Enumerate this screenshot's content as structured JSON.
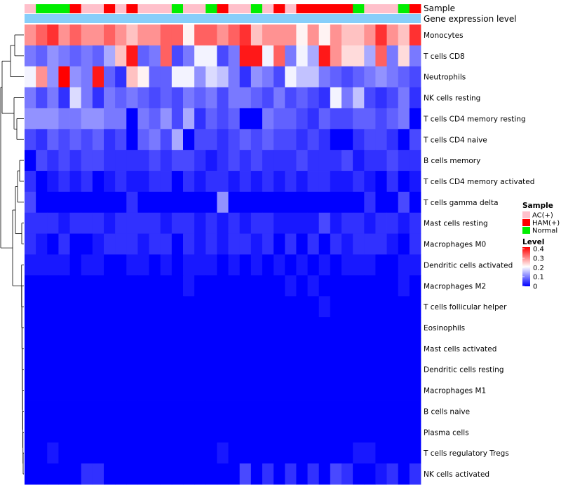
{
  "chart_data": {
    "type": "heatmap",
    "title": "",
    "annotation_rows": [
      "Sample",
      "Gene expression level"
    ],
    "samples": [
      "AC(+)",
      "Normal",
      "Normal",
      "Normal",
      "HAM(+)",
      "AC(+)",
      "AC(+)",
      "HAM(+)",
      "AC(+)",
      "HAM(+)",
      "AC(+)",
      "AC(+)",
      "AC(+)",
      "Normal",
      "AC(+)",
      "AC(+)",
      "Normal",
      "HAM(+)",
      "AC(+)",
      "AC(+)",
      "Normal",
      "AC(+)",
      "HAM(+)",
      "AC(+)",
      "HAM(+)",
      "HAM(+)",
      "HAM(+)",
      "HAM(+)",
      "HAM(+)",
      "Normal",
      "AC(+)",
      "AC(+)",
      "AC(+)",
      "Normal",
      "HAM(+)"
    ],
    "rows": [
      {
        "label": "Monocytes",
        "values": [
          0.3,
          0.34,
          0.38,
          0.3,
          0.34,
          0.3,
          0.3,
          0.34,
          0.3,
          0.26,
          0.3,
          0.3,
          0.34,
          0.34,
          0.22,
          0.34,
          0.34,
          0.3,
          0.34,
          0.38,
          0.26,
          0.3,
          0.3,
          0.3,
          0.22,
          0.3,
          0.22,
          0.3,
          0.26,
          0.26,
          0.3,
          0.38,
          0.3,
          0.26,
          0.38
        ]
      },
      {
        "label": "T cells CD8",
        "values": [
          0.1,
          0.08,
          0.12,
          0.1,
          0.08,
          0.1,
          0.08,
          0.14,
          0.26,
          0.4,
          0.08,
          0.1,
          0.34,
          0.06,
          0.1,
          0.2,
          0.2,
          0.06,
          0.1,
          0.4,
          0.4,
          0.2,
          0.34,
          0.1,
          0.2,
          0.14,
          0.4,
          0.3,
          0.24,
          0.24,
          0.14,
          0.34,
          0.1,
          0.24,
          0.1
        ]
      },
      {
        "label": "Neutrophils",
        "values": [
          0.2,
          0.3,
          0.12,
          0.42,
          0.12,
          0.1,
          0.4,
          0.08,
          0.04,
          0.26,
          0.22,
          0.08,
          0.08,
          0.2,
          0.2,
          0.12,
          0.18,
          0.16,
          0.1,
          0.04,
          0.12,
          0.1,
          0.06,
          0.2,
          0.16,
          0.16,
          0.1,
          0.08,
          0.06,
          0.08,
          0.1,
          0.12,
          0.1,
          0.08,
          0.06
        ]
      },
      {
        "label": "NK cells resting",
        "values": [
          0.1,
          0.06,
          0.1,
          0.04,
          0.18,
          0.1,
          0.04,
          0.1,
          0.08,
          0.1,
          0.08,
          0.06,
          0.08,
          0.06,
          0.1,
          0.08,
          0.1,
          0.06,
          0.1,
          0.1,
          0.08,
          0.06,
          0.1,
          0.06,
          0.08,
          0.06,
          0.04,
          0.2,
          0.1,
          0.16,
          0.06,
          0.04,
          0.06,
          0.1,
          0.04
        ]
      },
      {
        "label": "T cells CD4 memory resting",
        "values": [
          0.12,
          0.12,
          0.12,
          0.1,
          0.1,
          0.12,
          0.12,
          0.1,
          0.1,
          0.0,
          0.1,
          0.08,
          0.12,
          0.06,
          0.14,
          0.04,
          0.08,
          0.06,
          0.08,
          0.0,
          0.0,
          0.1,
          0.08,
          0.08,
          0.06,
          0.04,
          0.08,
          0.06,
          0.06,
          0.08,
          0.08,
          0.06,
          0.08,
          0.1,
          0.0
        ]
      },
      {
        "label": "T cells CD4 naive",
        "values": [
          0.06,
          0.04,
          0.08,
          0.06,
          0.08,
          0.06,
          0.08,
          0.04,
          0.06,
          0.0,
          0.08,
          0.1,
          0.06,
          0.14,
          0.0,
          0.06,
          0.06,
          0.04,
          0.06,
          0.08,
          0.06,
          0.08,
          0.06,
          0.06,
          0.04,
          0.06,
          0.04,
          0.0,
          0.0,
          0.04,
          0.06,
          0.06,
          0.04,
          0.0,
          0.06
        ]
      },
      {
        "label": "B cells memory",
        "values": [
          0.0,
          0.06,
          0.04,
          0.06,
          0.04,
          0.06,
          0.06,
          0.04,
          0.04,
          0.04,
          0.04,
          0.06,
          0.04,
          0.06,
          0.06,
          0.04,
          0.02,
          0.04,
          0.06,
          0.04,
          0.06,
          0.04,
          0.04,
          0.04,
          0.06,
          0.04,
          0.04,
          0.04,
          0.06,
          0.02,
          0.04,
          0.04,
          0.06,
          0.04,
          0.04
        ]
      },
      {
        "label": "T cells CD4 memory activated",
        "values": [
          0.04,
          0.0,
          0.02,
          0.04,
          0.02,
          0.04,
          0.0,
          0.02,
          0.04,
          0.02,
          0.02,
          0.04,
          0.04,
          0.0,
          0.04,
          0.02,
          0.04,
          0.04,
          0.02,
          0.04,
          0.02,
          0.04,
          0.02,
          0.04,
          0.02,
          0.04,
          0.04,
          0.02,
          0.02,
          0.04,
          0.02,
          0.0,
          0.04,
          0.0,
          0.02
        ]
      },
      {
        "label": "T cells gamma delta",
        "values": [
          0.06,
          0.0,
          0.0,
          0.0,
          0.0,
          0.0,
          0.0,
          0.0,
          0.0,
          0.04,
          0.0,
          0.0,
          0.0,
          0.0,
          0.0,
          0.0,
          0.0,
          0.12,
          0.0,
          0.0,
          0.0,
          0.0,
          0.0,
          0.0,
          0.0,
          0.0,
          0.0,
          0.0,
          0.0,
          0.0,
          0.04,
          0.0,
          0.0,
          0.06,
          0.0
        ]
      },
      {
        "label": "Mast cells resting",
        "values": [
          0.04,
          0.04,
          0.04,
          0.02,
          0.04,
          0.04,
          0.04,
          0.02,
          0.04,
          0.04,
          0.04,
          0.04,
          0.02,
          0.04,
          0.04,
          0.02,
          0.04,
          0.02,
          0.04,
          0.02,
          0.04,
          0.04,
          0.02,
          0.02,
          0.02,
          0.02,
          0.06,
          0.02,
          0.04,
          0.04,
          0.02,
          0.04,
          0.04,
          0.02,
          0.04
        ]
      },
      {
        "label": "Macrophages M0",
        "values": [
          0.04,
          0.02,
          0.0,
          0.04,
          0.0,
          0.0,
          0.02,
          0.04,
          0.04,
          0.04,
          0.02,
          0.04,
          0.04,
          0.0,
          0.04,
          0.02,
          0.04,
          0.02,
          0.04,
          0.04,
          0.02,
          0.04,
          0.0,
          0.04,
          0.0,
          0.04,
          0.0,
          0.04,
          0.02,
          0.04,
          0.04,
          0.04,
          0.02,
          0.0,
          0.04
        ]
      },
      {
        "label": "Dendritic cells activated",
        "values": [
          0.02,
          0.02,
          0.02,
          0.02,
          0.0,
          0.02,
          0.02,
          0.0,
          0.0,
          0.02,
          0.02,
          0.0,
          0.02,
          0.0,
          0.02,
          0.02,
          0.02,
          0.0,
          0.02,
          0.0,
          0.02,
          0.0,
          0.02,
          0.0,
          0.02,
          0.0,
          0.02,
          0.0,
          0.02,
          0.02,
          0.02,
          0.0,
          0.0,
          0.02,
          0.02
        ]
      },
      {
        "label": "Macrophages M2",
        "values": [
          0.0,
          0.0,
          0.0,
          0.0,
          0.0,
          0.0,
          0.0,
          0.0,
          0.0,
          0.0,
          0.0,
          0.0,
          0.0,
          0.0,
          0.02,
          0.0,
          0.0,
          0.0,
          0.0,
          0.0,
          0.0,
          0.0,
          0.0,
          0.02,
          0.0,
          0.02,
          0.0,
          0.0,
          0.0,
          0.0,
          0.0,
          0.0,
          0.0,
          0.02,
          0.0
        ]
      },
      {
        "label": "T cells follicular helper",
        "values": [
          0.0,
          0.0,
          0.0,
          0.0,
          0.0,
          0.0,
          0.0,
          0.0,
          0.0,
          0.0,
          0.0,
          0.0,
          0.0,
          0.0,
          0.0,
          0.0,
          0.0,
          0.0,
          0.0,
          0.0,
          0.0,
          0.0,
          0.0,
          0.0,
          0.0,
          0.0,
          0.02,
          0.0,
          0.0,
          0.0,
          0.0,
          0.0,
          0.0,
          0.0,
          0.0
        ]
      },
      {
        "label": "Eosinophils",
        "values": [
          0.0,
          0.0,
          0.0,
          0.0,
          0.0,
          0.0,
          0.0,
          0.0,
          0.0,
          0.0,
          0.0,
          0.0,
          0.0,
          0.0,
          0.0,
          0.0,
          0.0,
          0.0,
          0.0,
          0.0,
          0.0,
          0.0,
          0.0,
          0.0,
          0.0,
          0.0,
          0.0,
          0.0,
          0.0,
          0.0,
          0.0,
          0.0,
          0.0,
          0.0,
          0.0
        ]
      },
      {
        "label": "Mast cells activated",
        "values": [
          0.0,
          0.0,
          0.0,
          0.0,
          0.0,
          0.0,
          0.0,
          0.0,
          0.0,
          0.0,
          0.0,
          0.0,
          0.0,
          0.0,
          0.0,
          0.0,
          0.0,
          0.0,
          0.0,
          0.0,
          0.0,
          0.0,
          0.0,
          0.0,
          0.0,
          0.0,
          0.0,
          0.0,
          0.0,
          0.0,
          0.0,
          0.0,
          0.0,
          0.0,
          0.0
        ]
      },
      {
        "label": "Dendritic cells resting",
        "values": [
          0.0,
          0.0,
          0.0,
          0.0,
          0.0,
          0.0,
          0.0,
          0.0,
          0.0,
          0.0,
          0.0,
          0.0,
          0.0,
          0.0,
          0.0,
          0.0,
          0.0,
          0.0,
          0.0,
          0.0,
          0.0,
          0.0,
          0.0,
          0.0,
          0.0,
          0.0,
          0.0,
          0.0,
          0.0,
          0.0,
          0.0,
          0.0,
          0.0,
          0.0,
          0.0
        ]
      },
      {
        "label": "Macrophages M1",
        "values": [
          0.0,
          0.0,
          0.0,
          0.0,
          0.0,
          0.0,
          0.0,
          0.0,
          0.0,
          0.0,
          0.0,
          0.0,
          0.0,
          0.0,
          0.0,
          0.0,
          0.0,
          0.0,
          0.0,
          0.0,
          0.0,
          0.0,
          0.0,
          0.0,
          0.0,
          0.0,
          0.0,
          0.0,
          0.0,
          0.0,
          0.0,
          0.0,
          0.0,
          0.0,
          0.0
        ]
      },
      {
        "label": "B cells naive",
        "values": [
          0.0,
          0.0,
          0.0,
          0.0,
          0.0,
          0.0,
          0.0,
          0.0,
          0.0,
          0.0,
          0.0,
          0.0,
          0.0,
          0.0,
          0.0,
          0.0,
          0.0,
          0.0,
          0.0,
          0.0,
          0.0,
          0.0,
          0.0,
          0.0,
          0.0,
          0.0,
          0.0,
          0.0,
          0.0,
          0.0,
          0.0,
          0.0,
          0.0,
          0.0,
          0.0
        ]
      },
      {
        "label": "Plasma cells",
        "values": [
          0.0,
          0.0,
          0.0,
          0.0,
          0.0,
          0.0,
          0.0,
          0.0,
          0.0,
          0.0,
          0.0,
          0.0,
          0.0,
          0.0,
          0.0,
          0.0,
          0.0,
          0.0,
          0.0,
          0.0,
          0.0,
          0.0,
          0.0,
          0.0,
          0.0,
          0.0,
          0.0,
          0.0,
          0.0,
          0.0,
          0.0,
          0.0,
          0.0,
          0.0,
          0.0
        ]
      },
      {
        "label": "T cells regulatory  Tregs",
        "values": [
          0.0,
          0.0,
          0.02,
          0.0,
          0.0,
          0.0,
          0.0,
          0.0,
          0.0,
          0.0,
          0.0,
          0.0,
          0.0,
          0.0,
          0.0,
          0.0,
          0.0,
          0.02,
          0.0,
          0.0,
          0.0,
          0.0,
          0.0,
          0.0,
          0.0,
          0.0,
          0.0,
          0.0,
          0.0,
          0.02,
          0.02,
          0.0,
          0.0,
          0.0,
          0.0
        ]
      },
      {
        "label": "NK cells activated",
        "values": [
          0.0,
          0.0,
          0.0,
          0.0,
          0.0,
          0.04,
          0.04,
          0.0,
          0.0,
          0.0,
          0.0,
          0.0,
          0.0,
          0.0,
          0.0,
          0.0,
          0.0,
          0.0,
          0.0,
          0.06,
          0.0,
          0.04,
          0.0,
          0.04,
          0.0,
          0.04,
          0.0,
          0.06,
          0.04,
          0.0,
          0.0,
          0.02,
          0.04,
          0.0,
          0.04
        ]
      }
    ],
    "legend_sample": {
      "title": "Sample",
      "items": [
        {
          "label": "AC(+)",
          "color": "#ffc0cb"
        },
        {
          "label": "HAM(+)",
          "color": "#ff0000"
        },
        {
          "label": "Normal",
          "color": "#00ee00"
        }
      ]
    },
    "legend_level": {
      "title": "Level",
      "ticks": [
        "0.4",
        "0.3",
        "0.2",
        "0.1",
        "0"
      ],
      "tick_values": [
        0.4,
        0.3,
        0.2,
        0.1,
        0
      ],
      "range": [
        0,
        0.42
      ]
    },
    "colors": {
      "low": "#0000ff",
      "mid": "#ffffff",
      "high": "#ff0000",
      "gene_expression_bar": "#87cefa",
      "dendrogram": "#000000"
    }
  }
}
